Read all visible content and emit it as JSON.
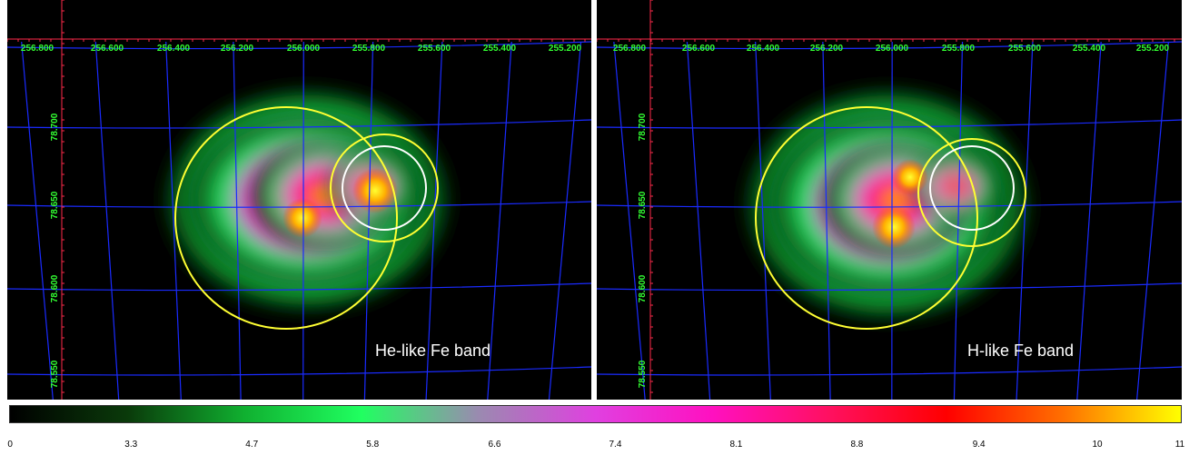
{
  "colors": {
    "grid": "#1a2bff",
    "axis": "#ff2a4a",
    "tick_label": "#33ff33",
    "large_circle": "#ffff33",
    "small_circle": "#ffff33",
    "inner_circle": "#ffffff"
  },
  "panels": [
    {
      "label": "He-like Fe band",
      "ra_ticks": [
        "256.800",
        "256.600",
        "256.400",
        "256.200",
        "256.000",
        "255.800",
        "255.600",
        "255.400",
        "255.200"
      ],
      "dec_ticks": [
        "78.700",
        "78.650",
        "78.600",
        "78.550"
      ]
    },
    {
      "label": "H-like Fe band",
      "ra_ticks": [
        "256.800",
        "256.600",
        "256.400",
        "256.200",
        "256.000",
        "255.800",
        "255.600",
        "255.400",
        "255.200"
      ],
      "dec_ticks": [
        "78.700",
        "78.650",
        "78.600",
        "78.550"
      ]
    }
  ],
  "colorbar": {
    "gradient_colors": [
      "#000000",
      "#0a3a0a",
      "#10b030",
      "#20ff60",
      "#9a8ab0",
      "#e040e0",
      "#ff10c0",
      "#ff1060",
      "#ff0000",
      "#ff7000",
      "#ffff00"
    ],
    "labels": [
      "0",
      "3.3",
      "4.7",
      "5.8",
      "6.6",
      "7.4",
      "8.1",
      "8.8",
      "9.4",
      "10",
      "11"
    ]
  }
}
